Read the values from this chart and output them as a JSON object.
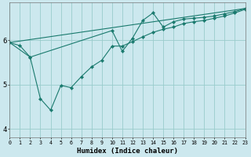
{
  "xlabel": "Humidex (Indice chaleur)",
  "bg_color": "#cce8ee",
  "line_color": "#1a7a6e",
  "grid_color": "#99cccc",
  "xlim": [
    0,
    23
  ],
  "ylim": [
    3.8,
    6.85
  ],
  "yticks": [
    4,
    5,
    6
  ],
  "lines": [
    {
      "x": [
        0,
        23
      ],
      "y": [
        5.95,
        6.72
      ],
      "has_markers": false
    },
    {
      "x": [
        0,
        1,
        2,
        3,
        4,
        5,
        6,
        7,
        8,
        9,
        10,
        11,
        12,
        13,
        14,
        15,
        16,
        17,
        18,
        19,
        20,
        21,
        22,
        23
      ],
      "y": [
        5.95,
        5.88,
        5.62,
        4.68,
        4.42,
        4.98,
        4.93,
        5.18,
        5.4,
        5.55,
        5.87,
        5.87,
        5.97,
        6.08,
        6.18,
        6.25,
        6.3,
        6.38,
        6.42,
        6.45,
        6.5,
        6.55,
        6.62,
        6.7
      ],
      "has_markers": true
    },
    {
      "x": [
        0,
        2,
        10,
        11,
        12,
        13,
        14,
        15,
        16,
        17,
        18,
        19,
        20,
        21,
        22,
        23
      ],
      "y": [
        5.95,
        5.62,
        6.22,
        5.75,
        6.05,
        6.45,
        6.62,
        6.3,
        6.42,
        6.48,
        6.5,
        6.52,
        6.55,
        6.6,
        6.65,
        6.72
      ],
      "has_markers": true
    }
  ]
}
